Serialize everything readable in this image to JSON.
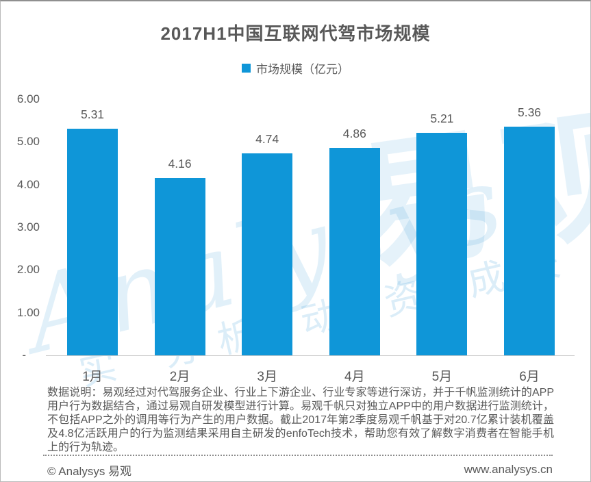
{
  "page": {
    "title": "2017H1中国互联网代驾市场规模"
  },
  "legend": {
    "label": "市场规模（亿元）"
  },
  "chart_data": {
    "type": "bar",
    "title": "2017H1中国互联网代驾市场规模",
    "series_name": "市场规模（亿元）",
    "categories": [
      "1月",
      "2月",
      "3月",
      "4月",
      "5月",
      "6月"
    ],
    "values": [
      5.31,
      4.16,
      4.74,
      4.86,
      5.21,
      5.36
    ],
    "data_labels": [
      "5.31",
      "4.16",
      "4.74",
      "4.86",
      "5.21",
      "5.36"
    ],
    "ylim": [
      0,
      6
    ],
    "ytick_labels": [
      "6.00",
      "5.00",
      "4.00",
      "3.00",
      "2.00",
      "1.00",
      "-"
    ],
    "xlabel": "",
    "ylabel": "",
    "grid": false,
    "legend_position": "top-center",
    "bar_color": "#0f96d8"
  },
  "watermark": {
    "script_text": "Analysys",
    "brand_text": "易观",
    "slogan_text": "实 分析 动 资 成长"
  },
  "footnote": {
    "text": "数据说明：易观经过对代驾服务企业、行业上下游企业、行业专家等进行深访，并于千帆监测统计的APP用户行为数据结合，通过易观自研发模型进行计算。易观千帆只对独立APP中的用户数据进行监测统计，不包括APP之外的调用等行为产生的用户数据。截止2017年第2季度易观千帆基于对20.7亿累计装机覆盖及4.8亿活跃用户的行为监测结果采用自主研发的enfoTech技术，帮助您有效了解数字消费者在智能手机上的行为轨迹。"
  },
  "footer": {
    "copyright": "© Analysys 易观",
    "website": "www.analysys.cn"
  },
  "colors": {
    "bar": "#0f96d8",
    "text": "#595959",
    "axis_line": "#c9c9c9",
    "watermark_tint": "#d7ebfa",
    "frame_border": "#b9b9b9"
  }
}
